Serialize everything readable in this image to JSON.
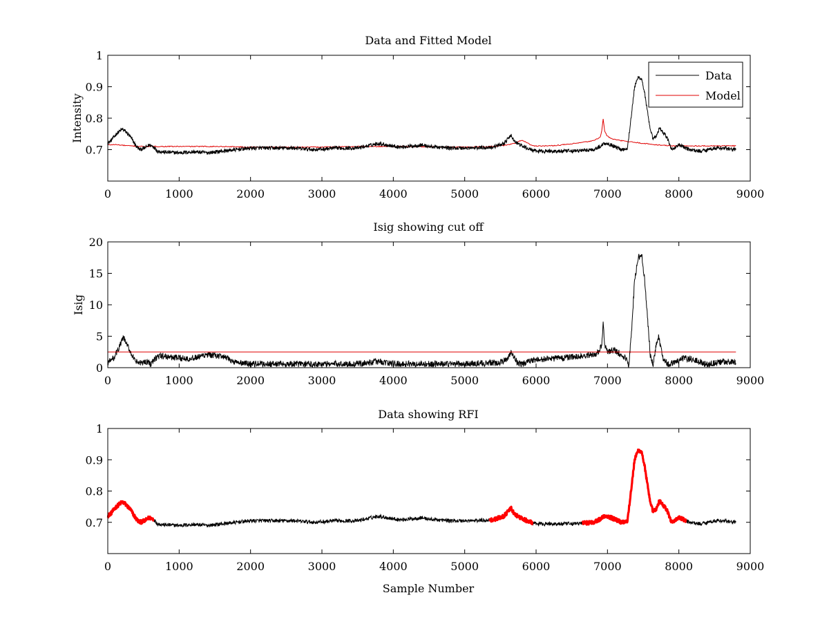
{
  "figure": {
    "background": "#ffffff",
    "series_colors": {
      "data": "#000000",
      "model": "#e00000",
      "rfi": "#ff0000",
      "cutoff": "#e00000"
    }
  },
  "chart_data": [
    {
      "type": "line",
      "title": "Data and Fitted Model",
      "xlabel": "",
      "ylabel": "Intensity",
      "xlim": [
        0,
        9000
      ],
      "ylim": [
        0.6,
        1.0
      ],
      "xticks": [
        0,
        1000,
        2000,
        3000,
        4000,
        5000,
        6000,
        7000,
        8000,
        9000
      ],
      "xtick_labels": [
        "0",
        "1000",
        "2000",
        "3000",
        "4000",
        "5000",
        "6000",
        "7000",
        "8000",
        "9000"
      ],
      "yticks": [
        0.7,
        0.8,
        0.9,
        1.0
      ],
      "ytick_labels": [
        "0.7",
        "0.8",
        "0.9",
        "1"
      ],
      "legend": {
        "position": "top-right",
        "entries": [
          "Data",
          "Model"
        ]
      },
      "series": [
        {
          "name": "Data",
          "color": "#000000",
          "noise": 0.006,
          "x": [
            0,
            50,
            120,
            200,
            240,
            320,
            400,
            450,
            520,
            580,
            640,
            700,
            800,
            1000,
            1200,
            1400,
            1600,
            1800,
            2000,
            2300,
            2600,
            2900,
            3200,
            3500,
            3700,
            3800,
            3900,
            4100,
            4300,
            4400,
            4500,
            4800,
            5100,
            5400,
            5550,
            5650,
            5700,
            5800,
            5900,
            6000,
            6200,
            6500,
            6800,
            6900,
            6950,
            7000,
            7100,
            7200,
            7280,
            7330,
            7380,
            7430,
            7480,
            7520,
            7560,
            7600,
            7640,
            7680,
            7730,
            7780,
            7830,
            7900,
            8000,
            8050,
            8150,
            8300,
            8500,
            8600,
            8800
          ],
          "y": [
            0.72,
            0.73,
            0.75,
            0.765,
            0.76,
            0.74,
            0.71,
            0.7,
            0.705,
            0.715,
            0.71,
            0.695,
            0.692,
            0.69,
            0.693,
            0.69,
            0.695,
            0.7,
            0.705,
            0.705,
            0.705,
            0.7,
            0.705,
            0.705,
            0.715,
            0.72,
            0.715,
            0.708,
            0.712,
            0.715,
            0.71,
            0.705,
            0.705,
            0.708,
            0.72,
            0.745,
            0.725,
            0.712,
            0.702,
            0.695,
            0.695,
            0.695,
            0.7,
            0.71,
            0.72,
            0.72,
            0.71,
            0.7,
            0.705,
            0.8,
            0.9,
            0.93,
            0.925,
            0.88,
            0.82,
            0.76,
            0.735,
            0.74,
            0.77,
            0.755,
            0.74,
            0.7,
            0.715,
            0.71,
            0.7,
            0.695,
            0.705,
            0.705,
            0.7
          ]
        },
        {
          "name": "Model",
          "color": "#e00000",
          "noise": 0.0015,
          "x": [
            0,
            100,
            300,
            500,
            800,
            1200,
            1600,
            2000,
            2500,
            3000,
            3500,
            4000,
            4500,
            5000,
            5400,
            5600,
            5700,
            5800,
            5850,
            5950,
            6200,
            6500,
            6800,
            6900,
            6920,
            6940,
            6960,
            6990,
            7050,
            7150,
            7300,
            7500,
            7700,
            7900,
            8100,
            8400,
            8800
          ],
          "y": [
            0.715,
            0.716,
            0.712,
            0.71,
            0.71,
            0.71,
            0.71,
            0.708,
            0.708,
            0.708,
            0.71,
            0.71,
            0.709,
            0.708,
            0.71,
            0.715,
            0.72,
            0.73,
            0.725,
            0.712,
            0.712,
            0.718,
            0.728,
            0.74,
            0.76,
            0.798,
            0.76,
            0.745,
            0.735,
            0.73,
            0.725,
            0.72,
            0.715,
            0.712,
            0.712,
            0.712,
            0.712
          ]
        }
      ]
    },
    {
      "type": "line",
      "title": "Isig showing cut off",
      "xlabel": "",
      "ylabel": "Isig",
      "xlim": [
        0,
        9000
      ],
      "ylim": [
        0,
        20
      ],
      "xticks": [
        0,
        1000,
        2000,
        3000,
        4000,
        5000,
        6000,
        7000,
        8000,
        9000
      ],
      "xtick_labels": [
        "0",
        "1000",
        "2000",
        "3000",
        "4000",
        "5000",
        "6000",
        "7000",
        "8000",
        "9000"
      ],
      "yticks": [
        0,
        5,
        10,
        15,
        20
      ],
      "ytick_labels": [
        "0",
        "5",
        "10",
        "15",
        "20"
      ],
      "series": [
        {
          "name": "Isig",
          "color": "#000000",
          "noise": 0.5,
          "x": [
            0,
            80,
            150,
            220,
            260,
            320,
            380,
            450,
            550,
            600,
            700,
            800,
            1000,
            1200,
            1400,
            1600,
            1800,
            2000,
            2500,
            3000,
            3500,
            3800,
            4000,
            4500,
            5000,
            5500,
            5600,
            5650,
            5700,
            5750,
            5800,
            6000,
            6300,
            6600,
            6850,
            6920,
            6940,
            6960,
            7000,
            7100,
            7250,
            7300,
            7340,
            7380,
            7430,
            7480,
            7520,
            7560,
            7600,
            7640,
            7680,
            7720,
            7740,
            7780,
            7850,
            7950,
            8050,
            8200,
            8400,
            8600,
            8800
          ],
          "y": [
            0.8,
            1.5,
            3.0,
            4.8,
            3.8,
            2.5,
            1.0,
            0.7,
            1.0,
            0.6,
            1.8,
            1.8,
            1.5,
            1.5,
            2.0,
            1.8,
            0.8,
            0.6,
            0.6,
            0.6,
            0.6,
            1.0,
            0.6,
            0.6,
            0.6,
            0.8,
            1.5,
            2.5,
            1.5,
            0.6,
            0.6,
            1.3,
            1.5,
            1.8,
            2.2,
            3.5,
            7.2,
            3.5,
            2.5,
            2.8,
            1.5,
            0.5,
            6.0,
            14.0,
            17.5,
            18.0,
            14.0,
            8.0,
            2.0,
            0.5,
            3.5,
            5.0,
            3.5,
            1.5,
            0.6,
            0.7,
            1.5,
            1.3,
            0.5,
            1.0,
            0.8
          ]
        },
        {
          "name": "Cut off",
          "color": "#e00000",
          "noise": 0,
          "x": [
            0,
            8800
          ],
          "y": [
            2.5,
            2.5
          ]
        }
      ]
    },
    {
      "type": "line",
      "title": "Data showing RFI",
      "xlabel": "Sample Number",
      "ylabel": "",
      "xlim": [
        0,
        9000
      ],
      "ylim": [
        0.6,
        1.0
      ],
      "xticks": [
        0,
        1000,
        2000,
        3000,
        4000,
        5000,
        6000,
        7000,
        8000,
        9000
      ],
      "xtick_labels": [
        "0",
        "1000",
        "2000",
        "3000",
        "4000",
        "5000",
        "6000",
        "7000",
        "8000",
        "9000"
      ],
      "yticks": [
        0.7,
        0.8,
        0.9,
        1.0
      ],
      "ytick_labels": [
        "0.7",
        "0.8",
        "0.9",
        "1"
      ],
      "base_series": "Data",
      "rfi_color": "#ff0000",
      "rfi_ranges": [
        [
          0,
          640
        ],
        [
          5350,
          5950
        ],
        [
          6650,
          8100
        ]
      ]
    }
  ]
}
